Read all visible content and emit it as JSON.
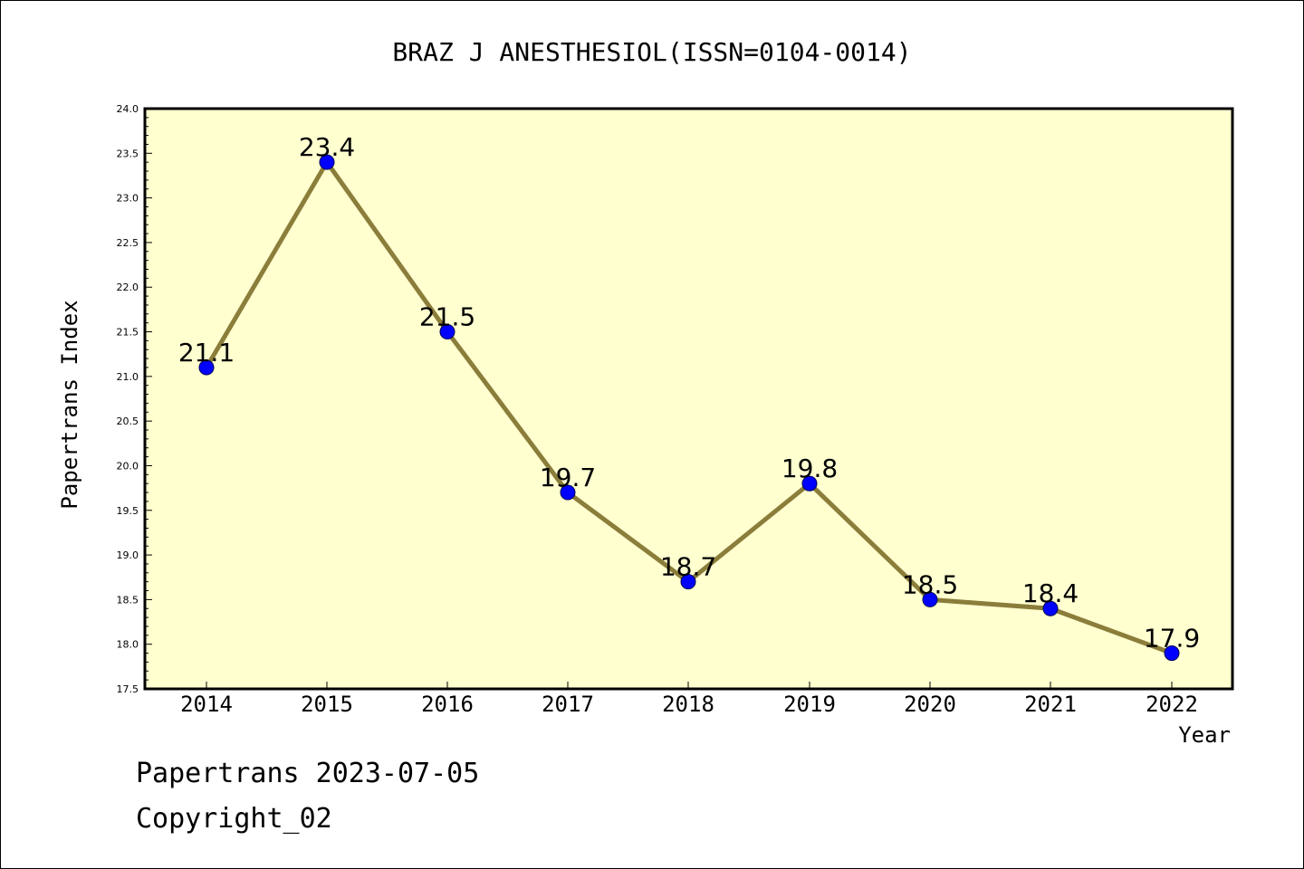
{
  "chart_data": {
    "type": "line",
    "title": "BRAZ J ANESTHESIOL(ISSN=0104-0014)",
    "xlabel": "Year",
    "ylabel": "Papertrans Index",
    "categories": [
      "2014",
      "2015",
      "2016",
      "2017",
      "2018",
      "2019",
      "2020",
      "2021",
      "2022"
    ],
    "series": [
      {
        "values": [
          21.1,
          23.4,
          21.5,
          19.7,
          18.7,
          19.8,
          18.5,
          18.4,
          17.9
        ],
        "data_labels": [
          "21.1",
          "23.4",
          "21.5",
          "19.7",
          "18.7",
          "19.8",
          "18.5",
          "18.4",
          "17.9"
        ]
      }
    ],
    "ylim": [
      17.5,
      24.0
    ],
    "y_ticks": [
      "17.5",
      "18.0",
      "18.5",
      "19.0",
      "19.5",
      "20.0",
      "20.5",
      "21.0",
      "21.5",
      "22.0",
      "22.5",
      "23.0",
      "23.5",
      "24.0"
    ],
    "grid": false,
    "legend": "none"
  },
  "footer": {
    "line1": "Papertrans 2023-07-05",
    "line2": "Copyright_02"
  },
  "colors": {
    "plot_background": "#ffffd0",
    "line": "#8b7d3a",
    "marker": "#0000ff"
  }
}
